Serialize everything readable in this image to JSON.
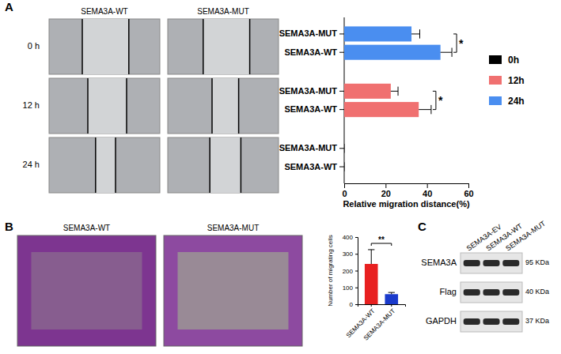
{
  "chart_data": [
    {
      "type": "bar",
      "orientation": "horizontal",
      "categories": [
        "SEMA3A-WT",
        "SEMA3A-MUT"
      ],
      "series": [
        {
          "name": "0h",
          "color": "#000000",
          "values": [
            0,
            0
          ],
          "errors": [
            0,
            0
          ]
        },
        {
          "name": "12h",
          "color": "#f07070",
          "values": [
            36,
            22.5
          ],
          "errors": [
            6,
            3.5
          ],
          "significance": "*"
        },
        {
          "name": "24h",
          "color": "#4a8ef0",
          "values": [
            46.5,
            32.5
          ],
          "errors": [
            5.5,
            4
          ],
          "significance": "*"
        }
      ],
      "x_label": "Relative migration distance(%)",
      "xlim": [
        0,
        60
      ],
      "xticks": [
        0,
        20,
        40,
        60
      ],
      "legend": "right"
    },
    {
      "type": "bar",
      "categories": [
        "SEMA3A-WT",
        "SEMA3A-MUT"
      ],
      "values": [
        240,
        60
      ],
      "errors": [
        85,
        10
      ],
      "colors": [
        "#e82020",
        "#1a3acb"
      ],
      "y_label": "Number of migrating cells",
      "ylim": [
        0,
        400
      ],
      "yticks": [
        0,
        100,
        200,
        300,
        400
      ],
      "significance": "**"
    }
  ],
  "figure": {
    "panel_a": {
      "letter": "A",
      "columns": [
        "SEMA3A-WT",
        "SEMA3A-MUT"
      ],
      "rows": [
        "0 h",
        "12 h",
        "24 h"
      ]
    },
    "panel_b": {
      "letter": "B",
      "columns": [
        "SEMA3A-WT",
        "SEMA3A-MUT"
      ]
    },
    "panel_c": {
      "letter": "C",
      "columns": [
        "SEMA3A-EV",
        "SEMA3A-WT",
        "SEMA3A-MUT"
      ],
      "rows": [
        "SEMA3A",
        "Flag",
        "GAPDH"
      ],
      "sizes": [
        "95 KDa",
        "40 KDa",
        "37 KDa"
      ]
    }
  }
}
